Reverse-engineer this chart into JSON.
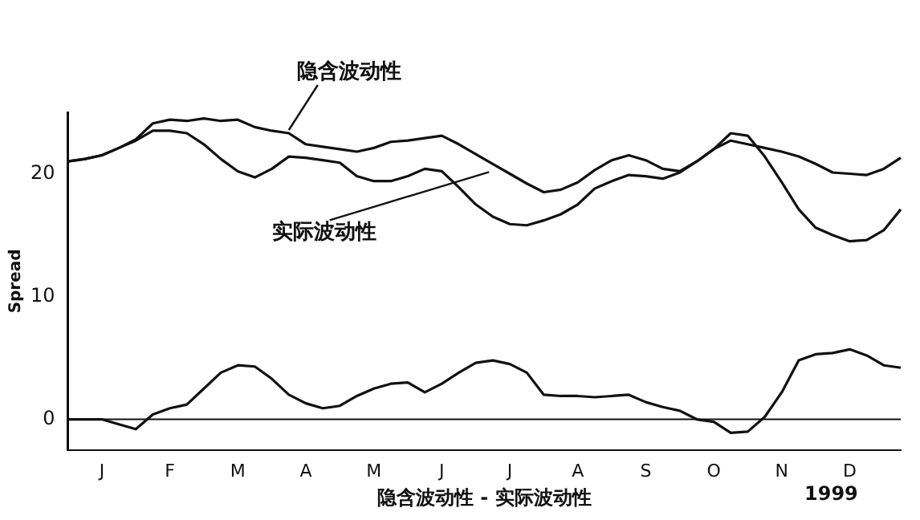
{
  "chart_data": {
    "type": "line",
    "xlabel": "隐含波动性 - 实际波动性",
    "ylabel": "Spread",
    "annotations": [
      "1999"
    ],
    "categories": [
      null,
      null,
      "J",
      null,
      null,
      null,
      "F",
      null,
      null,
      null,
      "M",
      null,
      null,
      null,
      "A",
      null,
      null,
      null,
      "M",
      null,
      null,
      null,
      "J",
      null,
      null,
      null,
      "J",
      null,
      null,
      null,
      "A",
      null,
      null,
      null,
      "S",
      null,
      null,
      null,
      "O",
      null,
      null,
      null,
      "N",
      null,
      null,
      null,
      "D",
      null,
      null,
      null
    ],
    "ylim": [
      -2.5,
      25
    ],
    "yticks": [
      0,
      10,
      20
    ],
    "grid": false,
    "legend": false,
    "marker": "none",
    "line_style": "solid",
    "ref_lines": [
      {
        "axis": "y",
        "value": 0
      }
    ],
    "series": [
      {
        "name": "隐含波动性",
        "color": "#111111",
        "values": [
          21.0,
          21.2,
          21.5,
          22.1,
          22.8,
          24.1,
          24.4,
          24.3,
          24.5,
          24.3,
          24.4,
          23.8,
          23.5,
          23.3,
          22.4,
          22.2,
          22.0,
          21.8,
          22.1,
          22.6,
          22.7,
          22.9,
          23.1,
          22.4,
          21.6,
          20.8,
          20.0,
          19.2,
          18.5,
          18.7,
          19.3,
          20.3,
          21.1,
          21.5,
          21.1,
          20.4,
          20.2,
          21.0,
          22.0,
          22.7,
          22.4,
          22.1,
          21.8,
          21.4,
          20.8,
          20.1,
          20.0,
          19.9,
          20.4,
          21.3
        ]
      },
      {
        "name": "实际波动性",
        "color": "#111111",
        "values": [
          21.0,
          21.2,
          21.5,
          22.1,
          22.7,
          23.5,
          23.5,
          23.3,
          22.4,
          21.2,
          20.2,
          19.7,
          20.4,
          21.4,
          21.3,
          21.1,
          20.9,
          19.8,
          19.4,
          19.4,
          19.8,
          20.4,
          20.2,
          18.9,
          17.5,
          16.5,
          15.9,
          15.8,
          16.2,
          16.7,
          17.5,
          18.8,
          19.4,
          19.9,
          19.8,
          19.6,
          20.1,
          21.0,
          22.0,
          23.3,
          23.1,
          21.4,
          19.3,
          17.1,
          15.6,
          15.0,
          14.5,
          14.6,
          15.4,
          17.1
        ]
      },
      {
        "color": "#111111",
        "values": [
          0,
          0,
          0,
          -0.4,
          -0.8,
          0.4,
          0.9,
          1.2,
          2.5,
          3.8,
          4.4,
          4.3,
          3.3,
          2.0,
          1.3,
          0.9,
          1.1,
          1.9,
          2.5,
          2.9,
          3.0,
          2.2,
          2.9,
          3.8,
          4.6,
          4.8,
          4.5,
          3.8,
          2.0,
          1.9,
          1.9,
          1.8,
          1.9,
          2.0,
          1.4,
          1.0,
          0.7,
          0,
          -0.2,
          -1.1,
          -1.0,
          0.2,
          2.2,
          4.8,
          5.3,
          5.4,
          5.7,
          5.2,
          4.4,
          4.2
        ]
      }
    ]
  }
}
